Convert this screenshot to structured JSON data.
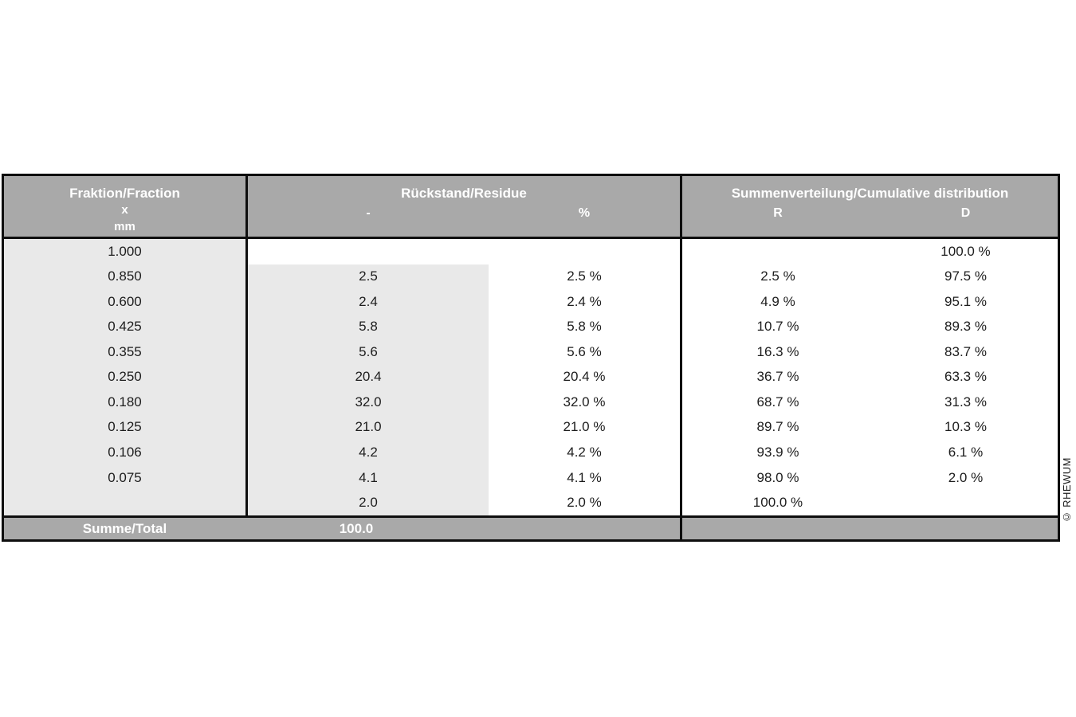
{
  "chart_data": {
    "type": "table",
    "title": "Sieve analysis / particle size distribution table",
    "column_groups": [
      {
        "title": "Fraktion/Fraction",
        "subcolumns": [
          "x mm"
        ]
      },
      {
        "title": "Rückstand/Residue",
        "subcolumns": [
          "-",
          "%"
        ]
      },
      {
        "title": "Summenverteilung/Cumulative distribution",
        "subcolumns": [
          "R",
          "D"
        ]
      }
    ],
    "columns": [
      "fraction_x_mm",
      "residue",
      "residue_percent",
      "cumulative_R_percent",
      "cumulative_D_percent"
    ],
    "rows": [
      [
        1.0,
        null,
        null,
        null,
        100.0
      ],
      [
        0.85,
        2.5,
        2.5,
        2.5,
        97.5
      ],
      [
        0.6,
        2.4,
        2.4,
        4.9,
        95.1
      ],
      [
        0.425,
        5.8,
        5.8,
        10.7,
        89.3
      ],
      [
        0.355,
        5.6,
        5.6,
        16.3,
        83.7
      ],
      [
        0.25,
        20.4,
        20.4,
        36.7,
        63.3
      ],
      [
        0.18,
        32.0,
        32.0,
        68.7,
        31.3
      ],
      [
        0.125,
        21.0,
        21.0,
        89.7,
        10.3
      ],
      [
        0.106,
        4.2,
        4.2,
        93.9,
        6.1
      ],
      [
        0.075,
        4.1,
        4.1,
        98.0,
        2.0
      ],
      [
        null,
        2.0,
        2.0,
        100.0,
        null
      ]
    ],
    "total_row": {
      "label": "Summe/Total",
      "residue_total": 100.0
    },
    "legend_position": "none",
    "grid": false
  },
  "table": {
    "col1_header": {
      "line1": "Fraktion/Fraction",
      "line2": "x",
      "line3": "mm"
    },
    "col2_header": {
      "title": "Rückstand/Residue",
      "sub1": "-",
      "sub2": "%"
    },
    "col3_header": {
      "title": "Summenverteilung/Cumulative distribution",
      "sub1": "R",
      "sub2": "D"
    },
    "rows": [
      {
        "fraction": "1.000",
        "residue": "",
        "residue_pct": "",
        "r": "",
        "d": "100.0 %"
      },
      {
        "fraction": "0.850",
        "residue": "2.5",
        "residue_pct": "2.5 %",
        "r": "2.5 %",
        "d": "97.5 %"
      },
      {
        "fraction": "0.600",
        "residue": "2.4",
        "residue_pct": "2.4 %",
        "r": "4.9 %",
        "d": "95.1 %"
      },
      {
        "fraction": "0.425",
        "residue": "5.8",
        "residue_pct": "5.8 %",
        "r": "10.7 %",
        "d": "89.3 %"
      },
      {
        "fraction": "0.355",
        "residue": "5.6",
        "residue_pct": "5.6 %",
        "r": "16.3 %",
        "d": "83.7 %"
      },
      {
        "fraction": "0.250",
        "residue": "20.4",
        "residue_pct": "20.4 %",
        "r": "36.7 %",
        "d": "63.3 %"
      },
      {
        "fraction": "0.180",
        "residue": "32.0",
        "residue_pct": "32.0 %",
        "r": "68.7 %",
        "d": "31.3 %"
      },
      {
        "fraction": "0.125",
        "residue": "21.0",
        "residue_pct": "21.0 %",
        "r": "89.7 %",
        "d": "10.3 %"
      },
      {
        "fraction": "0.106",
        "residue": "4.2",
        "residue_pct": "4.2 %",
        "r": "93.9 %",
        "d": "6.1 %"
      },
      {
        "fraction": "0.075",
        "residue": "4.1",
        "residue_pct": "4.1 %",
        "r": "98.0 %",
        "d": "2.0 %"
      },
      {
        "fraction": "",
        "residue": "2.0",
        "residue_pct": "2.0 %",
        "r": "100.0 %",
        "d": ""
      }
    ],
    "footer": {
      "label": "Summe/Total",
      "total": "100.0"
    }
  },
  "watermark": "© RHEWUM",
  "colors": {
    "header_bg": "#a9a9a9",
    "light_cell_bg": "#e9e9e9",
    "border": "#0e0e0e",
    "body_text": "#1d1d1d",
    "header_text": "#ffffff",
    "page_bg": "#ffffff"
  }
}
